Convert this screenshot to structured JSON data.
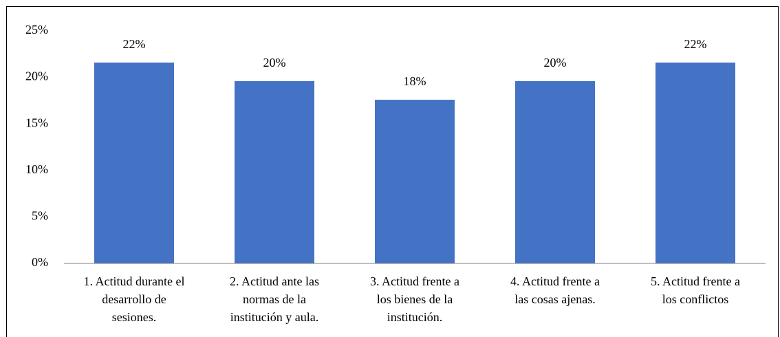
{
  "chart_data": {
    "type": "bar",
    "categories": [
      [
        "1. Actitud durante el",
        "desarrollo de",
        "sesiones."
      ],
      [
        "2. Actitud ante las",
        "normas de la",
        "institución y aula."
      ],
      [
        "3. Actitud frente a",
        "los bienes de la",
        "institución."
      ],
      [
        "4. Actitud frente a",
        "las cosas ajenas."
      ],
      [
        "5. Actitud frente a",
        "los conflictos"
      ]
    ],
    "values": [
      21.6,
      19.6,
      17.6,
      19.6,
      21.6
    ],
    "value_labels": [
      "22%",
      "20%",
      "18%",
      "20%",
      "22%"
    ],
    "color": "#4472c4",
    "ylim": [
      0,
      25
    ],
    "yticks": [
      {
        "value": 0,
        "label": "0%"
      },
      {
        "value": 5,
        "label": "5%"
      },
      {
        "value": 10,
        "label": "10%"
      },
      {
        "value": 15,
        "label": "15%"
      },
      {
        "value": 20,
        "label": "20%"
      },
      {
        "value": 25,
        "label": "25%"
      }
    ],
    "grid": false
  }
}
